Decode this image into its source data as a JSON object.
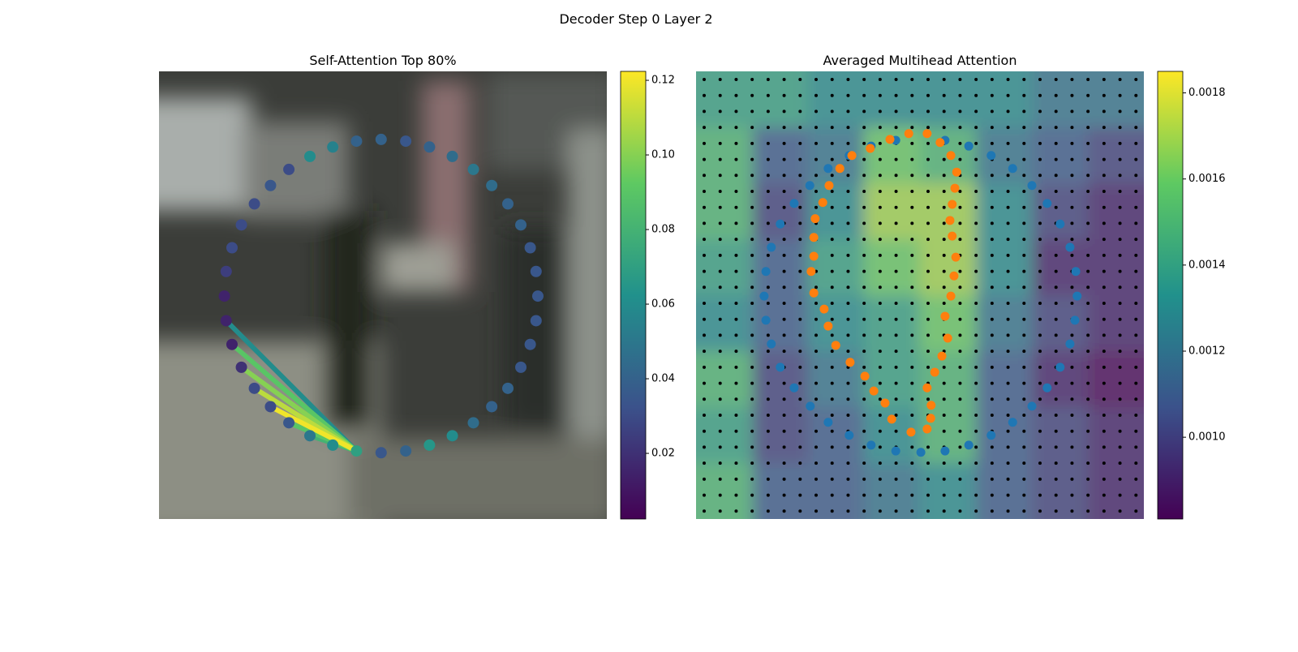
{
  "title": "Decoder Step 0 Layer 2",
  "chart_data": [
    {
      "type": "scatter",
      "title": "Self-Attention Top 80%",
      "xlim": [
        0,
        100
      ],
      "ylim": [
        100,
        0
      ],
      "x": [
        49.6,
        55.1,
        60.4,
        65.5,
        70.2,
        74.3,
        77.9,
        80.8,
        82.9,
        84.2,
        84.6,
        84.2,
        82.9,
        80.8,
        77.9,
        74.3,
        70.2,
        65.5,
        60.4,
        55.1,
        49.6,
        44.1,
        38.8,
        33.7,
        29.0,
        24.9,
        21.3,
        18.4,
        16.3,
        15.0,
        14.6,
        15.0,
        16.3,
        18.4,
        21.3,
        24.9,
        29.0,
        33.7,
        38.8,
        44.1
      ],
      "y": [
        15.2,
        15.6,
        16.9,
        19.0,
        21.9,
        25.5,
        29.6,
        34.3,
        39.4,
        44.7,
        50.2,
        55.7,
        61.0,
        66.1,
        70.8,
        74.9,
        78.5,
        81.4,
        83.5,
        84.8,
        85.2,
        84.8,
        83.5,
        81.4,
        78.5,
        74.9,
        70.8,
        66.1,
        61.0,
        55.7,
        50.2,
        44.7,
        39.4,
        34.3,
        29.6,
        25.5,
        21.9,
        19.0,
        16.9,
        15.6
      ],
      "values": [
        0.04,
        0.035,
        0.04,
        0.045,
        0.05,
        0.045,
        0.04,
        0.04,
        0.035,
        0.035,
        0.035,
        0.035,
        0.035,
        0.035,
        0.04,
        0.04,
        0.045,
        0.06,
        0.065,
        0.04,
        0.035,
        0.07,
        0.06,
        0.05,
        0.035,
        0.03,
        0.03,
        0.02,
        0.015,
        0.015,
        0.015,
        0.025,
        0.03,
        0.03,
        0.03,
        0.035,
        0.03,
        0.06,
        0.055,
        0.04
      ],
      "links": {
        "source": 21,
        "targets": [
          29,
          23,
          28,
          24,
          27,
          26,
          25
        ],
        "weights": [
          0.06,
          0.08,
          0.09,
          0.09,
          0.1,
          0.11,
          0.12
        ]
      },
      "clim": [
        0.0024,
        0.1224
      ],
      "cticks": [
        0.02,
        0.04,
        0.06,
        0.08,
        {
          "value": 0.1,
          "label": "0.10"
        },
        0.12
      ],
      "colormap": "viridis"
    },
    {
      "type": "heatmap",
      "title": "Averaged Multihead Attention",
      "xlim": [
        0,
        100
      ],
      "ylim": [
        100,
        0
      ],
      "heatmap": [
        [
          0.0014,
          0.0014,
          0.0013,
          0.0013,
          0.0013,
          0.0013,
          0.0012,
          0.0012
        ],
        [
          0.0015,
          0.0011,
          0.0012,
          0.0016,
          0.0015,
          0.0012,
          0.0011,
          0.001
        ],
        [
          0.0015,
          0.001,
          0.0013,
          0.0017,
          0.0017,
          0.0013,
          0.001,
          0.0009
        ],
        [
          0.0014,
          0.0011,
          0.0014,
          0.0016,
          0.0017,
          0.0013,
          0.0009,
          0.0009
        ],
        [
          0.0013,
          0.0011,
          0.0013,
          0.0014,
          0.0016,
          0.0012,
          0.001,
          0.0009
        ],
        [
          0.0015,
          0.001,
          0.0012,
          0.0014,
          0.0015,
          0.0011,
          0.0009,
          0.0008
        ],
        [
          0.0014,
          0.001,
          0.0011,
          0.0013,
          0.0015,
          0.0011,
          0.001,
          0.0009
        ],
        [
          0.0015,
          0.0011,
          0.0011,
          0.0012,
          0.0013,
          0.0011,
          0.001,
          0.0009
        ]
      ],
      "series": [
        {
          "color": "#1f77b4",
          "x": [
            44.6,
            55.6,
            60.9,
            65.9,
            70.7,
            75.0,
            78.4,
            81.3,
            83.5,
            84.8,
            85.1,
            84.6,
            83.5,
            81.3,
            78.4,
            75.0,
            70.7,
            65.9,
            60.9,
            55.6,
            50.2,
            44.6,
            39.1,
            34.2,
            29.5,
            25.5,
            21.9,
            18.8,
            16.8,
            15.6,
            15.2,
            15.6,
            16.8,
            18.8,
            21.9,
            25.4,
            29.5,
            34.2,
            39.1
          ],
          "y": [
            15.4,
            15.4,
            16.7,
            18.8,
            21.7,
            25.5,
            29.5,
            34.1,
            39.3,
            44.7,
            50.2,
            55.6,
            60.9,
            66.1,
            70.7,
            74.8,
            78.4,
            81.3,
            83.5,
            84.8,
            85.1,
            84.8,
            83.5,
            81.3,
            78.4,
            74.8,
            70.7,
            66.1,
            60.9,
            55.6,
            50.2,
            44.7,
            39.3,
            34.1,
            29.5,
            25.5,
            21.7,
            18.8,
            16.7
          ]
        },
        {
          "color": "#ff7f0e",
          "x": [
            47.5,
            51.6,
            54.5,
            56.9,
            58.2,
            57.8,
            57.2,
            56.7,
            57.2,
            58.0,
            57.6,
            56.9,
            55.6,
            56.2,
            54.9,
            53.3,
            51.6,
            52.5,
            52.4,
            51.6,
            48.0,
            43.7,
            42.2,
            39.7,
            37.7,
            34.4,
            31.2,
            29.5,
            28.6,
            26.3,
            25.7,
            26.3,
            26.3,
            26.6,
            28.3,
            29.7,
            32.1,
            34.8,
            38.9,
            43.3
          ],
          "y": [
            13.9,
            13.9,
            15.9,
            18.8,
            22.5,
            26.1,
            29.7,
            33.3,
            36.8,
            41.5,
            45.7,
            50.2,
            54.7,
            59.6,
            63.6,
            67.2,
            70.7,
            74.6,
            77.5,
            79.9,
            80.6,
            77.7,
            74.1,
            71.4,
            68.1,
            65.0,
            61.2,
            56.9,
            53.1,
            49.5,
            44.7,
            41.3,
            37.1,
            32.9,
            29.3,
            25.5,
            21.7,
            18.8,
            17.2,
            15.2
          ]
        }
      ],
      "clim": [
        0.00081,
        0.00185
      ],
      "cticks": [
        {
          "value": 0.001,
          "label": "0.0010"
        },
        0.0012,
        0.0014,
        0.0016,
        0.0018
      ],
      "colormap": "viridis"
    }
  ]
}
